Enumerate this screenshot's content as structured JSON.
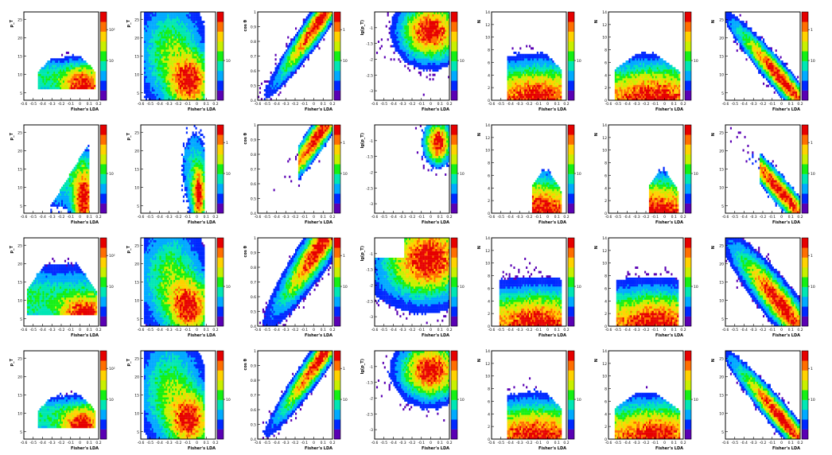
{
  "figure": {
    "rows": 4,
    "cols": 7,
    "colorscale": [
      "#5a00b4",
      "#0028ff",
      "#00aaff",
      "#00e6b4",
      "#14f014",
      "#c8f000",
      "#ffd200",
      "#ff6e00",
      "#e60000"
    ],
    "xlabel": "Fisher's LDA"
  },
  "chart_data": [
    {
      "type": "heatmap",
      "row": 0,
      "col": 0,
      "ylabel": "p_T",
      "xticks": [
        "-0.6",
        "-0.5",
        "-0.4",
        "-0.3",
        "-0.2",
        "-0.1",
        "0",
        "0.1",
        "0.2"
      ],
      "yticks": [
        "5",
        "10",
        "15",
        "20",
        "25"
      ],
      "zticks": [
        "10",
        "10²"
      ],
      "xlim": [
        -0.6,
        0.2
      ],
      "ylim": [
        3,
        27
      ],
      "shape": "banana",
      "density": 0.75
    },
    {
      "type": "heatmap",
      "row": 0,
      "col": 1,
      "ylabel": "p_T",
      "xticks": [
        "-0.6",
        "-0.5",
        "-0.4",
        "-0.3",
        "-0.2",
        "-0.1",
        "0",
        "0.1",
        "0.2"
      ],
      "yticks": [
        "5",
        "10",
        "15",
        "20",
        "25"
      ],
      "zticks": [
        "10"
      ],
      "xlim": [
        -0.6,
        0.2
      ],
      "ylim": [
        3,
        27
      ],
      "shape": "cloud",
      "density": 0.9
    },
    {
      "type": "heatmap",
      "row": 0,
      "col": 2,
      "ylabel": "cos θ",
      "xticks": [
        "-0.6",
        "-0.5",
        "-0.4",
        "-0.3",
        "-0.2",
        "-0.1",
        "0",
        "0.1",
        "0.2"
      ],
      "yticks": [
        "0.4",
        "0.5",
        "0.6",
        "0.7",
        "0.8",
        "0.9",
        "1"
      ],
      "zticks": [
        "10",
        "1"
      ],
      "xlim": [
        -0.6,
        0.2
      ],
      "ylim": [
        0.4,
        1.0
      ],
      "shape": "diag-up",
      "density": 0.9
    },
    {
      "type": "heatmap",
      "row": 0,
      "col": 3,
      "ylabel": "lg(p_T)",
      "xticks": [
        "-0.6",
        "-0.5",
        "-0.4",
        "-0.3",
        "-0.2",
        "-0.1",
        "0",
        "0.1",
        "0.2"
      ],
      "yticks": [
        "-3",
        "-2.5",
        "-2",
        "-1.5",
        "-1"
      ],
      "zticks": [
        "10"
      ],
      "xlim": [
        -0.6,
        0.2
      ],
      "ylim": [
        -3.3,
        -0.5
      ],
      "shape": "blob",
      "density": 0.9
    },
    {
      "type": "heatmap",
      "row": 0,
      "col": 4,
      "ylabel": "N",
      "xticks": [
        "-0.6",
        "-0.5",
        "-0.4",
        "-0.3",
        "-0.2",
        "-0.1",
        "0",
        "0.1",
        "0.2"
      ],
      "yticks": [
        "0",
        "2",
        "4",
        "6",
        "8",
        "10",
        "12",
        "14"
      ],
      "zticks": [
        "10"
      ],
      "xlim": [
        -0.6,
        0.2
      ],
      "ylim": [
        0,
        14
      ],
      "shape": "steps",
      "density": 0.8
    },
    {
      "type": "heatmap",
      "row": 0,
      "col": 5,
      "ylabel": "N",
      "xticks": [
        "-0.6",
        "-0.5",
        "-0.4",
        "-0.3",
        "-0.2",
        "-0.1",
        "0",
        "0.1",
        "0.2"
      ],
      "yticks": [
        "0",
        "2",
        "4",
        "6",
        "8",
        "10",
        "12",
        "14"
      ],
      "zticks": [
        "10"
      ],
      "xlim": [
        -0.6,
        0.2
      ],
      "ylim": [
        0,
        14
      ],
      "shape": "steps-flat",
      "density": 0.8
    },
    {
      "type": "heatmap",
      "row": 0,
      "col": 6,
      "ylabel": "N",
      "xticks": [
        "-0.6",
        "-0.5",
        "-0.4",
        "-0.3",
        "-0.2",
        "-0.1",
        "0",
        "0.1",
        "0.2"
      ],
      "yticks": [
        "5",
        "10",
        "15",
        "20",
        "25"
      ],
      "zticks": [
        "10",
        "1"
      ],
      "xlim": [
        -0.6,
        0.2
      ],
      "ylim": [
        3,
        27
      ],
      "shape": "diag-down",
      "density": 0.8
    },
    {
      "type": "heatmap",
      "row": 1,
      "col": 0,
      "ylabel": "p_T",
      "xticks": [
        "-0.6",
        "-0.5",
        "-0.4",
        "-0.3",
        "-0.2",
        "-0.1",
        "0",
        "0.1",
        "0.2"
      ],
      "yticks": [
        "5",
        "10",
        "15",
        "20",
        "25"
      ],
      "zticks": [
        "10"
      ],
      "xlim": [
        -0.6,
        0.2
      ],
      "ylim": [
        3,
        27
      ],
      "shape": "wedge",
      "density": 0.45
    },
    {
      "type": "heatmap",
      "row": 1,
      "col": 1,
      "ylabel": "p_T",
      "xticks": [
        "-0.6",
        "-0.5",
        "-0.4",
        "-0.3",
        "-0.2",
        "-0.1",
        "0",
        "0.1",
        "0.2"
      ],
      "yticks": [
        "5",
        "10",
        "15",
        "20",
        "25"
      ],
      "zticks": [
        "10",
        "1"
      ],
      "xlim": [
        -0.6,
        0.2
      ],
      "ylim": [
        3,
        27
      ],
      "shape": "narrow",
      "density": 0.45
    },
    {
      "type": "heatmap",
      "row": 1,
      "col": 2,
      "ylabel": "cos θ",
      "xticks": [
        "-0.6",
        "-0.5",
        "-0.4",
        "-0.3",
        "-0.2",
        "-0.1",
        "0",
        "0.1",
        "0.2"
      ],
      "yticks": [
        "0.4",
        "0.5",
        "0.6",
        "0.7",
        "0.8",
        "0.9",
        "1"
      ],
      "zticks": [
        "10",
        "1"
      ],
      "xlim": [
        -0.6,
        0.2
      ],
      "ylim": [
        0.4,
        1.0
      ],
      "shape": "diag-up-short",
      "density": 0.45
    },
    {
      "type": "heatmap",
      "row": 1,
      "col": 3,
      "ylabel": "lg(p_T)",
      "xticks": [
        "-0.6",
        "-0.5",
        "-0.4",
        "-0.3",
        "-0.2",
        "-0.1",
        "0",
        "0.1",
        "0.2"
      ],
      "yticks": [
        "-3",
        "-2.5",
        "-2",
        "-1.5",
        "-1"
      ],
      "zticks": [
        "10"
      ],
      "xlim": [
        -0.6,
        0.2
      ],
      "ylim": [
        -3.3,
        -0.5
      ],
      "shape": "blob-small",
      "density": 0.45
    },
    {
      "type": "heatmap",
      "row": 1,
      "col": 4,
      "ylabel": "N",
      "xticks": [
        "-0.6",
        "-0.5",
        "-0.4",
        "-0.3",
        "-0.2",
        "-0.1",
        "0",
        "0.1",
        "0.2"
      ],
      "yticks": [
        "0",
        "2",
        "4",
        "6",
        "8",
        "10",
        "12",
        "14"
      ],
      "zticks": [
        "10"
      ],
      "xlim": [
        -0.6,
        0.2
      ],
      "ylim": [
        0,
        14
      ],
      "shape": "steps-narrow",
      "density": 0.5
    },
    {
      "type": "heatmap",
      "row": 1,
      "col": 5,
      "ylabel": "N",
      "xticks": [
        "-0.6",
        "-0.5",
        "-0.4",
        "-0.3",
        "-0.2",
        "-0.1",
        "0",
        "0.1",
        "0.2"
      ],
      "yticks": [
        "0",
        "2",
        "4",
        "6",
        "8",
        "10",
        "12",
        "14"
      ],
      "zticks": [
        "10"
      ],
      "xlim": [
        -0.6,
        0.2
      ],
      "ylim": [
        0,
        14
      ],
      "shape": "steps-narrow",
      "density": 0.5
    },
    {
      "type": "heatmap",
      "row": 1,
      "col": 6,
      "ylabel": "N",
      "xticks": [
        "-0.6",
        "-0.5",
        "-0.4",
        "-0.3",
        "-0.2",
        "-0.1",
        "0",
        "0.1",
        "0.2"
      ],
      "yticks": [
        "5",
        "10",
        "15",
        "20",
        "25"
      ],
      "zticks": [
        "10",
        "1"
      ],
      "xlim": [
        -0.6,
        0.2
      ],
      "ylim": [
        3,
        27
      ],
      "shape": "diag-down-short",
      "density": 0.45
    },
    {
      "type": "heatmap",
      "row": 2,
      "col": 0,
      "ylabel": "p_T",
      "xticks": [
        "-0.6",
        "-0.5",
        "-0.4",
        "-0.3",
        "-0.2",
        "-0.1",
        "0",
        "0.1",
        "0.2"
      ],
      "yticks": [
        "5",
        "10",
        "15",
        "20",
        "25"
      ],
      "zticks": [
        "10",
        "10²"
      ],
      "xlim": [
        -0.6,
        0.2
      ],
      "ylim": [
        3,
        27
      ],
      "shape": "banana-wide",
      "density": 1.0
    },
    {
      "type": "heatmap",
      "row": 2,
      "col": 1,
      "ylabel": "p_T",
      "xticks": [
        "-0.6",
        "-0.5",
        "-0.4",
        "-0.3",
        "-0.2",
        "-0.1",
        "0",
        "0.1",
        "0.2"
      ],
      "yticks": [
        "5",
        "10",
        "15",
        "20",
        "25"
      ],
      "zticks": [
        "10"
      ],
      "xlim": [
        -0.6,
        0.2
      ],
      "ylim": [
        3,
        27
      ],
      "shape": "cloud-dense",
      "density": 1.0
    },
    {
      "type": "heatmap",
      "row": 2,
      "col": 2,
      "ylabel": "cos θ",
      "xticks": [
        "-0.6",
        "-0.5",
        "-0.4",
        "-0.3",
        "-0.2",
        "-0.1",
        "0",
        "0.1",
        "0.2"
      ],
      "yticks": [
        "0.4",
        "0.5",
        "0.6",
        "0.7",
        "0.8",
        "0.9",
        "1"
      ],
      "zticks": [
        "10",
        "1"
      ],
      "xlim": [
        -0.6,
        0.2
      ],
      "ylim": [
        0.4,
        1.0
      ],
      "shape": "diag-up-wide",
      "density": 1.0
    },
    {
      "type": "heatmap",
      "row": 2,
      "col": 3,
      "ylabel": "lg(p_T)",
      "xticks": [
        "-0.6",
        "-0.5",
        "-0.4",
        "-0.3",
        "-0.2",
        "-0.1",
        "0",
        "0.1",
        "0.2"
      ],
      "yticks": [
        "-3",
        "-2.5",
        "-2",
        "-1.5",
        "-1"
      ],
      "zticks": [
        "10"
      ],
      "xlim": [
        -0.6,
        0.2
      ],
      "ylim": [
        -3.3,
        -0.5
      ],
      "shape": "blob-wide",
      "density": 1.0
    },
    {
      "type": "heatmap",
      "row": 2,
      "col": 4,
      "ylabel": "N",
      "xticks": [
        "-0.6",
        "-0.5",
        "-0.4",
        "-0.3",
        "-0.2",
        "-0.1",
        "0",
        "0.1",
        "0.2"
      ],
      "yticks": [
        "0",
        "2",
        "4",
        "6",
        "8",
        "10",
        "12",
        "14"
      ],
      "zticks": [
        "10"
      ],
      "xlim": [
        -0.6,
        0.2
      ],
      "ylim": [
        0,
        14
      ],
      "shape": "steps-full",
      "density": 1.0
    },
    {
      "type": "heatmap",
      "row": 2,
      "col": 5,
      "ylabel": "N",
      "xticks": [
        "-0.6",
        "-0.5",
        "-0.4",
        "-0.3",
        "-0.2",
        "-0.1",
        "0",
        "0.1",
        "0.2"
      ],
      "yticks": [
        "0",
        "2",
        "4",
        "6",
        "8",
        "10",
        "12",
        "14"
      ],
      "zticks": [
        "10"
      ],
      "xlim": [
        -0.6,
        0.2
      ],
      "ylim": [
        0,
        14
      ],
      "shape": "steps-full",
      "density": 1.0
    },
    {
      "type": "heatmap",
      "row": 2,
      "col": 6,
      "ylabel": "N",
      "xticks": [
        "-0.6",
        "-0.5",
        "-0.4",
        "-0.3",
        "-0.2",
        "-0.1",
        "0",
        "0.1",
        "0.2"
      ],
      "yticks": [
        "5",
        "10",
        "15",
        "20",
        "25"
      ],
      "zticks": [
        "10",
        "1"
      ],
      "xlim": [
        -0.6,
        0.2
      ],
      "ylim": [
        3,
        27
      ],
      "shape": "diag-down-wide",
      "density": 1.0
    },
    {
      "type": "heatmap",
      "row": 3,
      "col": 0,
      "ylabel": "p_T",
      "xticks": [
        "-0.6",
        "-0.5",
        "-0.4",
        "-0.3",
        "-0.2",
        "-0.1",
        "0",
        "0.1",
        "0.2"
      ],
      "yticks": [
        "5",
        "10",
        "15",
        "20",
        "25"
      ],
      "zticks": [
        "10",
        "10²"
      ],
      "xlim": [
        -0.6,
        0.2
      ],
      "ylim": [
        3,
        27
      ],
      "shape": "banana",
      "density": 0.75
    },
    {
      "type": "heatmap",
      "row": 3,
      "col": 1,
      "ylabel": "p_T",
      "xticks": [
        "-0.6",
        "-0.5",
        "-0.4",
        "-0.3",
        "-0.2",
        "-0.1",
        "0",
        "0.1",
        "0.2"
      ],
      "yticks": [
        "5",
        "10",
        "15",
        "20",
        "25"
      ],
      "zticks": [
        "10"
      ],
      "xlim": [
        -0.6,
        0.2
      ],
      "ylim": [
        3,
        27
      ],
      "shape": "cloud",
      "density": 0.9
    },
    {
      "type": "heatmap",
      "row": 3,
      "col": 2,
      "ylabel": "cos θ",
      "xticks": [
        "-0.6",
        "-0.5",
        "-0.4",
        "-0.3",
        "-0.2",
        "-0.1",
        "0",
        "0.1",
        "0.2"
      ],
      "yticks": [
        "0.4",
        "0.5",
        "0.6",
        "0.7",
        "0.8",
        "0.9",
        "1"
      ],
      "zticks": [
        "10",
        "1"
      ],
      "xlim": [
        -0.6,
        0.2
      ],
      "ylim": [
        0.4,
        1.0
      ],
      "shape": "diag-up",
      "density": 0.9
    },
    {
      "type": "heatmap",
      "row": 3,
      "col": 3,
      "ylabel": "lg(p_T)",
      "xticks": [
        "-0.6",
        "-0.5",
        "-0.4",
        "-0.3",
        "-0.2",
        "-0.1",
        "0",
        "0.1",
        "0.2"
      ],
      "yticks": [
        "-3",
        "-2.5",
        "-2",
        "-1.5",
        "-1"
      ],
      "zticks": [
        "10"
      ],
      "xlim": [
        -0.6,
        0.2
      ],
      "ylim": [
        -3.3,
        -0.5
      ],
      "shape": "blob",
      "density": 0.9
    },
    {
      "type": "heatmap",
      "row": 3,
      "col": 4,
      "ylabel": "N",
      "xticks": [
        "-0.6",
        "-0.5",
        "-0.4",
        "-0.3",
        "-0.2",
        "-0.1",
        "0",
        "0.1",
        "0.2"
      ],
      "yticks": [
        "0",
        "2",
        "4",
        "6",
        "8",
        "10",
        "12",
        "14"
      ],
      "zticks": [
        "10"
      ],
      "xlim": [
        -0.6,
        0.2
      ],
      "ylim": [
        0,
        14
      ],
      "shape": "steps",
      "density": 0.8
    },
    {
      "type": "heatmap",
      "row": 3,
      "col": 5,
      "ylabel": "N",
      "xticks": [
        "-0.6",
        "-0.5",
        "-0.4",
        "-0.3",
        "-0.2",
        "-0.1",
        "0",
        "0.1",
        "0.2"
      ],
      "yticks": [
        "0",
        "2",
        "4",
        "6",
        "8",
        "10",
        "12",
        "14"
      ],
      "zticks": [
        "10"
      ],
      "xlim": [
        -0.6,
        0.2
      ],
      "ylim": [
        0,
        14
      ],
      "shape": "steps-flat",
      "density": 0.8
    },
    {
      "type": "heatmap",
      "row": 3,
      "col": 6,
      "ylabel": "N",
      "xticks": [
        "-0.6",
        "-0.5",
        "-0.4",
        "-0.3",
        "-0.2",
        "-0.1",
        "0",
        "0.1",
        "0.2"
      ],
      "yticks": [
        "5",
        "10",
        "15",
        "20",
        "25"
      ],
      "zticks": [
        "10",
        "1"
      ],
      "xlim": [
        -0.6,
        0.2
      ],
      "ylim": [
        3,
        27
      ],
      "shape": "diag-down",
      "density": 0.8
    }
  ]
}
